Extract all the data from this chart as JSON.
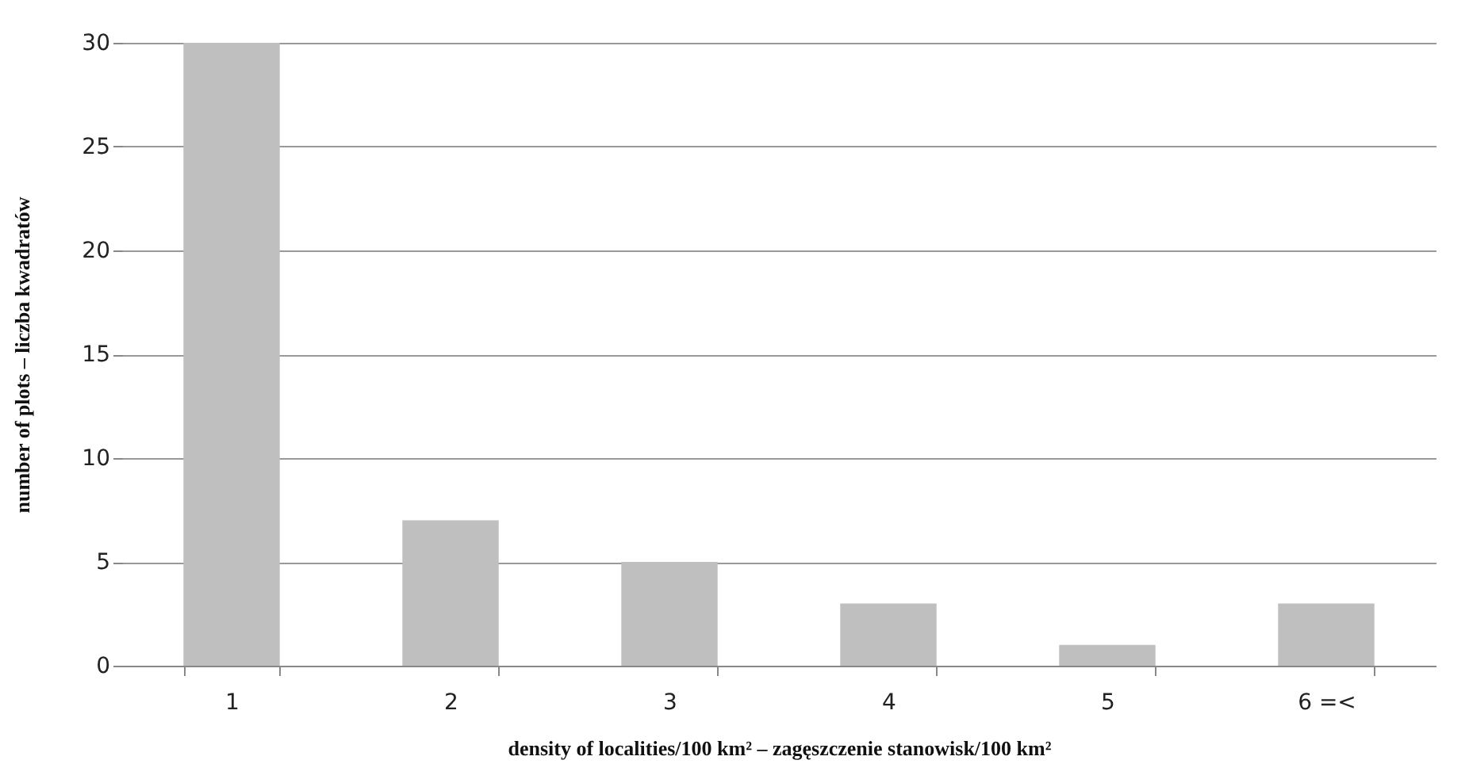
{
  "chart_data": {
    "type": "bar",
    "xlabel": "density of localities/100 km² – zagęszczenie stanowisk/100 km²",
    "ylabel": "number of plots – liczba kwadratów",
    "categories": [
      "1",
      "2",
      "3",
      "4",
      "5",
      "6 =<"
    ],
    "values": [
      30,
      7,
      5,
      3,
      1,
      3
    ],
    "color": "#bfbfbf",
    "ylim": [
      0,
      30
    ],
    "yticks": [
      0,
      5,
      10,
      15,
      20,
      25,
      30
    ],
    "grid": "y"
  }
}
